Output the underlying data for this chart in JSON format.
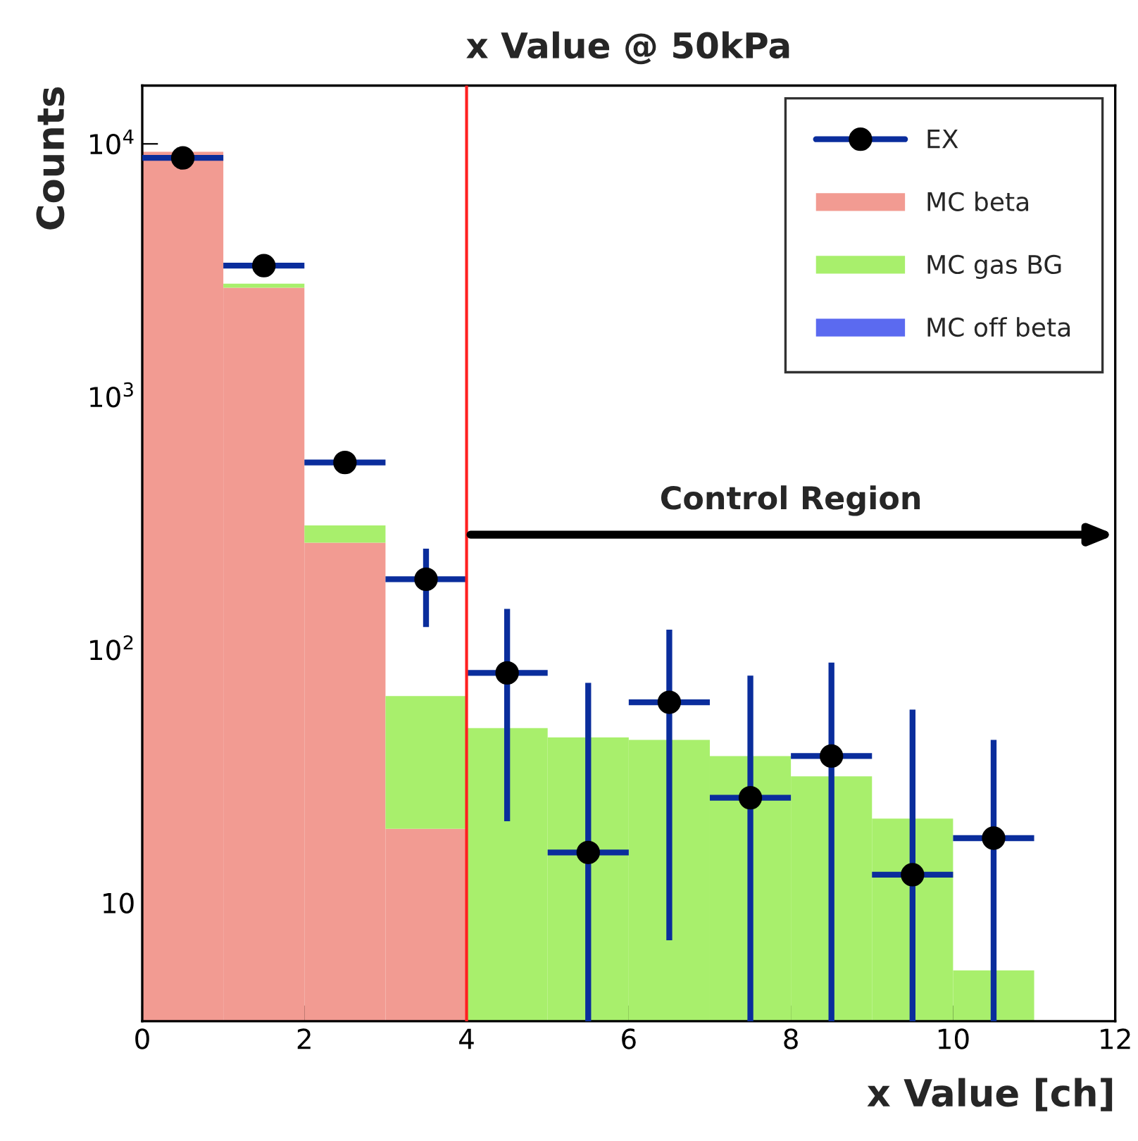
{
  "chart_data": {
    "type": "bar",
    "title": "x Value @ 50kPa",
    "xlabel": "x Value [ch]",
    "ylabel": "Counts",
    "x": [
      0.5,
      1.5,
      2.5,
      3.5,
      4.5,
      5.5,
      6.5,
      7.5,
      8.5,
      9.5,
      10.5
    ],
    "stacked": true,
    "log": "y",
    "grid": false,
    "legend": "top right",
    "xlim": [
      0,
      12
    ],
    "xticks": [
      0,
      2,
      4,
      6,
      8,
      10,
      12
    ],
    "ylim": [
      3.4,
      17000
    ],
    "yticks": [
      10,
      {
        "value": 100,
        "label": "10$^{2}$"
      },
      {
        "value": 1000,
        "label": "10$^{3}$"
      },
      {
        "value": 10000,
        "label": "10$^{4}$"
      }
    ],
    "series": [
      {
        "name": "MC beta",
        "color": "#f29b92",
        "values": [
          9300,
          2700,
          265,
          19.6,
          null,
          null,
          null,
          null,
          null,
          null,
          null
        ]
      },
      {
        "name": "MC gas BG",
        "color": "#a8ef6c",
        "values": [
          null,
          100,
          45,
          46,
          49,
          45,
          44,
          38,
          31.6,
          21.5,
          5.4
        ]
      },
      {
        "name": "MC off beta",
        "color": "#5b6af0",
        "values": [
          null,
          null,
          null,
          null,
          null,
          null,
          null,
          null,
          null,
          null,
          null
        ]
      },
      {
        "name": "EX",
        "type": "scatter",
        "color": "#000000",
        "marker": "circle",
        "x": [
          0.5,
          1.5,
          2.5,
          3.5,
          4.5,
          5.5,
          6.5,
          7.5,
          8.5,
          9.5,
          10.5
        ],
        "values": [
          8800,
          3300,
          550,
          190,
          81,
          15.8,
          62,
          26,
          38,
          12.9,
          18
        ],
        "errors": [
          null,
          null,
          null,
          [
            123,
            251
          ],
          [
            21,
            145
          ],
          [
            3.4,
            74
          ],
          [
            7.1,
            120
          ],
          [
            3.4,
            79
          ],
          [
            3.4,
            89
          ],
          [
            3.4,
            58
          ],
          [
            3.4,
            44
          ]
        ],
        "xerrors": [
          0.5,
          0.5,
          0.5,
          0.5,
          0.5,
          0.5,
          0.5,
          0.5,
          0.5,
          0.5,
          0.5
        ]
      }
    ],
    "ref_lines": [
      {
        "axis": "x",
        "value": 4,
        "color": "#ff2020"
      }
    ],
    "annotations": [
      "Control Region"
    ]
  }
}
